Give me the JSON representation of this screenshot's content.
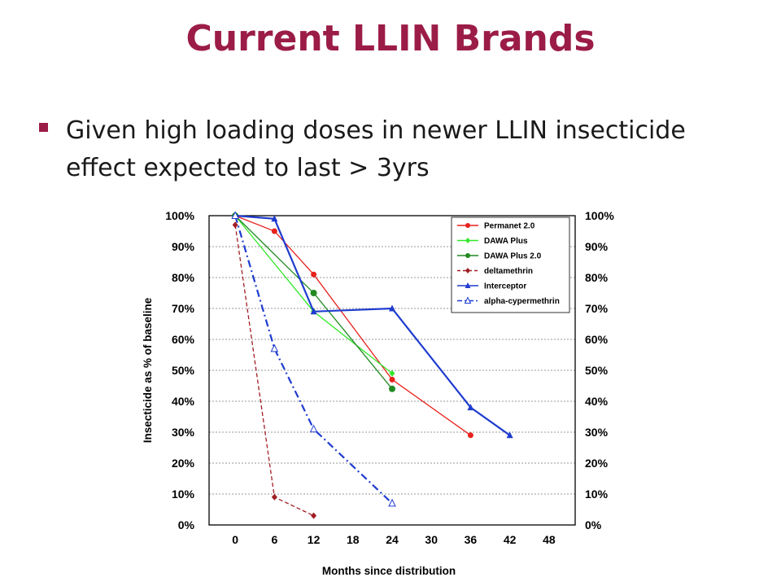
{
  "slide": {
    "title": "Current LLIN Brands",
    "bullet": "Given high loading doses in newer LLIN insecticide effect expected to last > 3yrs",
    "accent_color": "#9b1c47"
  },
  "chart_data": {
    "type": "line",
    "title": "",
    "xlabel": "Months since distribution",
    "ylabel": "Insecticide as % of baseline",
    "xlim": [
      -4,
      52
    ],
    "ylim": [
      0,
      100
    ],
    "xticks": [
      0,
      6,
      12,
      18,
      24,
      30,
      36,
      42,
      48
    ],
    "yticks": [
      0,
      10,
      20,
      30,
      40,
      50,
      60,
      70,
      80,
      90,
      100
    ],
    "grid": "horizontal",
    "y_axis_mirrored_right": true,
    "legend_position": "top-right",
    "series": [
      {
        "name": "Permanet 2.0",
        "color": "#e8211d",
        "line": "solid",
        "marker": "circle",
        "points": [
          [
            0,
            100
          ],
          [
            6,
            95
          ],
          [
            12,
            81
          ],
          [
            24,
            47
          ],
          [
            36,
            29
          ]
        ]
      },
      {
        "name": "DAWA Plus",
        "color": "#33e62a",
        "line": "solid",
        "marker": "diamond",
        "points": [
          [
            0,
            100
          ],
          [
            12,
            69
          ],
          [
            24,
            49
          ]
        ]
      },
      {
        "name": "DAWA Plus 2.0",
        "color": "#218a21",
        "line": "solid",
        "marker": "circle",
        "points": [
          [
            0,
            100
          ],
          [
            12,
            75
          ],
          [
            24,
            44
          ]
        ]
      },
      {
        "name": "deltamethrin",
        "color": "#a01e24",
        "line": "dashed",
        "marker": "diamond",
        "points": [
          [
            0,
            97
          ],
          [
            6,
            9
          ],
          [
            12,
            3
          ]
        ]
      },
      {
        "name": "Interceptor",
        "color": "#1f3ccf",
        "line": "solid",
        "marker": "triangle",
        "points": [
          [
            0,
            100
          ],
          [
            6,
            99
          ],
          [
            12,
            69
          ],
          [
            24,
            70
          ],
          [
            36,
            38
          ],
          [
            42,
            29
          ]
        ]
      },
      {
        "name": "alpha-cypermethrin",
        "color": "#1f3ccf",
        "line": "dashdot",
        "marker": "triangle-open",
        "points": [
          [
            0,
            100
          ],
          [
            6,
            57
          ],
          [
            12,
            31
          ],
          [
            24,
            7
          ]
        ]
      }
    ]
  }
}
